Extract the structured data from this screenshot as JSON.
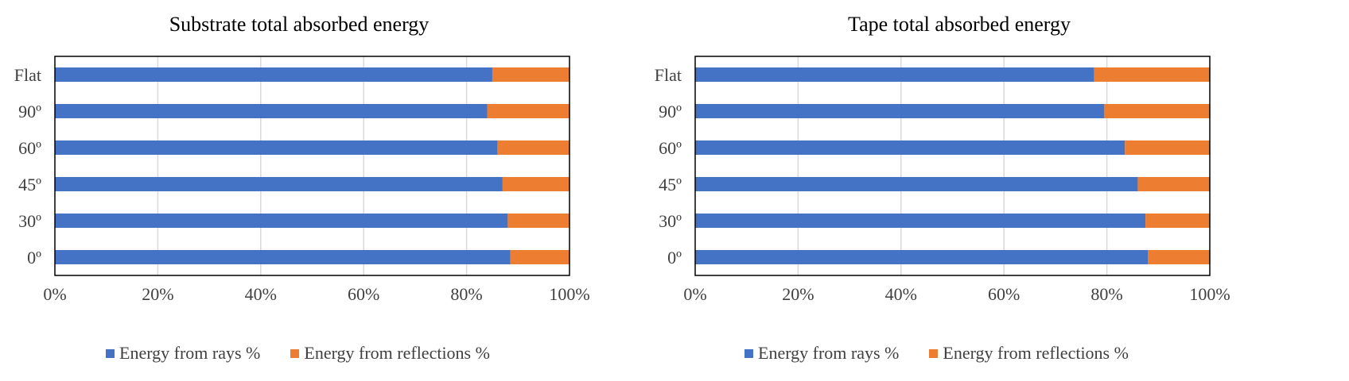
{
  "colors": {
    "rays": "#4472C4",
    "reflections": "#ED7D31",
    "grid": "#D9D9D9",
    "frame": "#000000"
  },
  "charts": [
    {
      "title": "Substrate total absorbed energy"
    },
    {
      "title": "Tape total absorbed energy"
    }
  ],
  "legend": {
    "rays": "Energy from rays %",
    "reflections": "Energy from reflections %"
  },
  "chart_data": [
    {
      "type": "bar",
      "orientation": "horizontal",
      "stacked": "percent",
      "title": "Substrate total absorbed energy",
      "categories": [
        "Flat",
        "90º",
        "60º",
        "45º",
        "30º",
        "0º"
      ],
      "series": [
        {
          "name": "Energy from rays %",
          "values": [
            85,
            84,
            86,
            87,
            88,
            88.5
          ]
        },
        {
          "name": "Energy from reflections %",
          "values": [
            15,
            16,
            14,
            13,
            12,
            11.5
          ]
        }
      ],
      "xticks": [
        "0%",
        "20%",
        "40%",
        "60%",
        "80%",
        "100%"
      ],
      "xlim": [
        0,
        100
      ],
      "grid": true,
      "legend_position": "bottom"
    },
    {
      "type": "bar",
      "orientation": "horizontal",
      "stacked": "percent",
      "title": "Tape total absorbed energy",
      "categories": [
        "Flat",
        "90º",
        "60º",
        "45º",
        "30º",
        "0º"
      ],
      "series": [
        {
          "name": "Energy from rays %",
          "values": [
            77.5,
            79.5,
            83.5,
            86,
            87.5,
            88
          ]
        },
        {
          "name": "Energy from reflections %",
          "values": [
            22.5,
            20.5,
            16.5,
            14,
            12.5,
            12
          ]
        }
      ],
      "xticks": [
        "0%",
        "20%",
        "40%",
        "60%",
        "80%",
        "100%"
      ],
      "xlim": [
        0,
        100
      ],
      "grid": true,
      "legend_position": "bottom"
    }
  ]
}
